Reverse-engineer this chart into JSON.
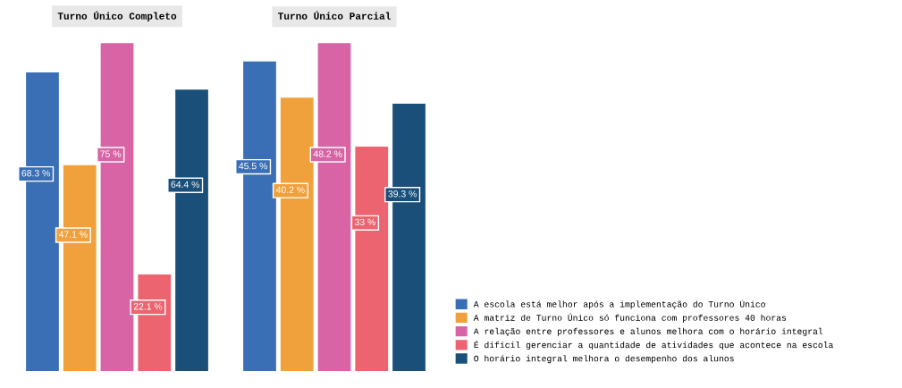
{
  "chart_data": [
    {
      "type": "bar",
      "title": "Turno Único Completo",
      "categories": [
        null
      ],
      "legend": false,
      "grid": false,
      "series": [
        {
          "color": "#3a6fb5",
          "values": [
            68.3
          ],
          "value_labels": [
            "68.3 %"
          ]
        },
        {
          "color": "#f0a13c",
          "values": [
            47.1
          ],
          "value_labels": [
            "47.1 %"
          ]
        },
        {
          "color": "#d864a6",
          "values": [
            75
          ],
          "value_labels": [
            "75 %"
          ]
        },
        {
          "color": "#ec6470",
          "values": [
            22.1
          ],
          "value_labels": [
            "22.1 %"
          ]
        },
        {
          "color": "#1a4f7a",
          "values": [
            64.4
          ],
          "value_labels": [
            "64.4 %"
          ]
        }
      ]
    },
    {
      "type": "bar",
      "title": "Turno Único Parcial",
      "categories": [
        null
      ],
      "legend": "right",
      "grid": false,
      "series": [
        {
          "name": "A escola está melhor após a implementação do Turno Único",
          "color": "#3a6fb5",
          "values": [
            45.5
          ],
          "value_labels": [
            "45.5 %"
          ]
        },
        {
          "name": "A matriz de Turno Único só funciona com professores 40 horas",
          "color": "#f0a13c",
          "values": [
            40.2
          ],
          "value_labels": [
            "40.2 %"
          ]
        },
        {
          "name": "A relação entre professores e alunos melhora com o horário integral",
          "color": "#d864a6",
          "values": [
            48.2
          ],
          "value_labels": [
            "48.2 %"
          ]
        },
        {
          "name": "É difícil gerenciar a quantidade de atividades que acontece na escola",
          "color": "#ec6470",
          "values": [
            33
          ],
          "value_labels": [
            "33 %"
          ]
        },
        {
          "name": "O horário integral melhora o desempenho dos alunos",
          "color": "#1a4f7a",
          "values": [
            39.3
          ],
          "value_labels": [
            "39.3 %"
          ]
        }
      ]
    }
  ]
}
